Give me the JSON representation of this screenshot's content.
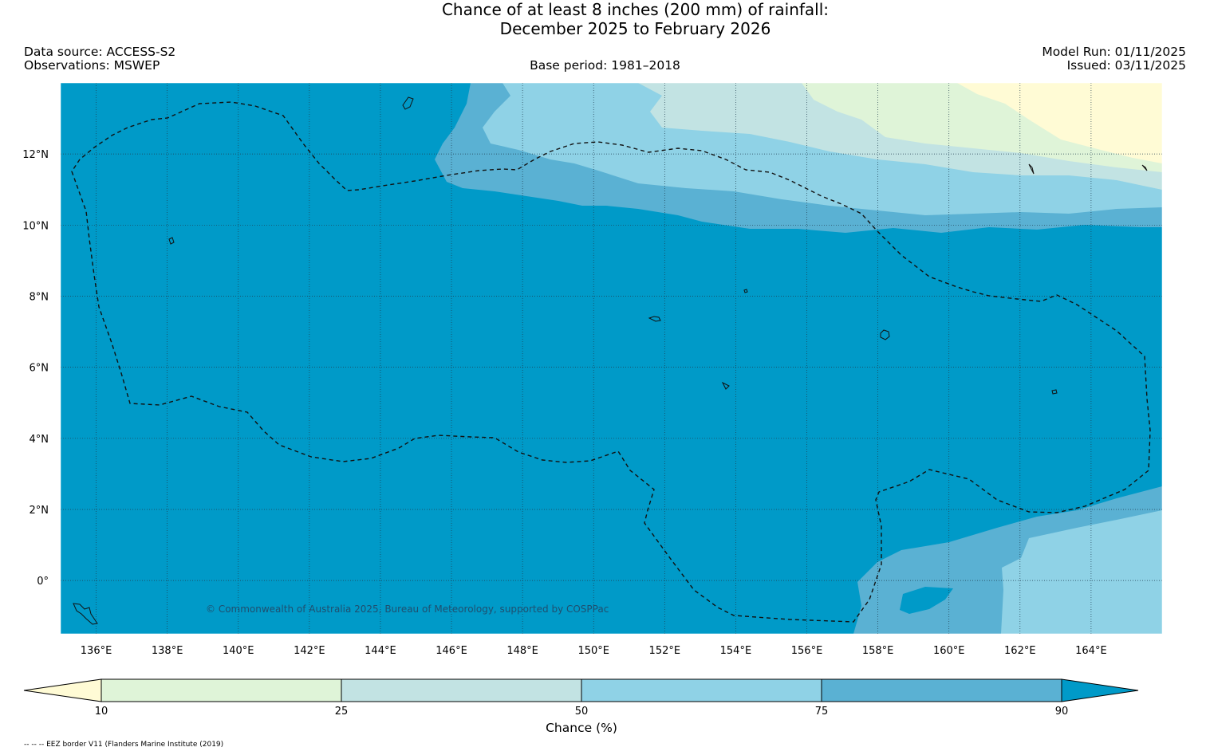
{
  "title": {
    "line1": "Chance of at least 8 inches (200  mm) of rainfall:",
    "line2": "December 2025 to February 2026"
  },
  "header": {
    "data_source": "Data source: ACCESS-S2",
    "observations": "Observations: MSWEP",
    "base_period": "Base period: 1981–2018",
    "model_run": "Model Run: 01/11/2025",
    "issued": "Issued: 03/11/2025"
  },
  "map": {
    "longitude_labels": [
      "136°E",
      "138°E",
      "140°E",
      "142°E",
      "144°E",
      "146°E",
      "148°E",
      "150°E",
      "152°E",
      "154°E",
      "156°E",
      "158°E",
      "160°E",
      "162°E",
      "164°E"
    ],
    "latitude_labels": [
      "12°N",
      "10°N",
      "8°N",
      "6°N",
      "4°N",
      "2°N",
      "0°"
    ],
    "extent": {
      "lon_min": 135,
      "lon_max": 166,
      "lat_min": -1.5,
      "lat_max": 14
    },
    "credit": "© Commonwealth of Australia 2025, Bureau of Meteorology, supported by COSPPac",
    "dominant_category": "> 90%"
  },
  "colorbar": {
    "title": "Chance (%)",
    "ticks": [
      "10",
      "25",
      "50",
      "75",
      "90"
    ],
    "bins": [
      {
        "range": "< 10",
        "color": "#fffbd5"
      },
      {
        "range": "10–25",
        "color": "#dff4d8"
      },
      {
        "range": "25–50",
        "color": "#c2e3e3"
      },
      {
        "range": "50–75",
        "color": "#8fd2e6"
      },
      {
        "range": "75–90",
        "color": "#5ab1d3"
      },
      {
        "range": "> 90",
        "color": "#009ac8"
      }
    ]
  },
  "footnote": "-- -- -- EEZ border V11 (Flanders Marine Institute (2019)"
}
